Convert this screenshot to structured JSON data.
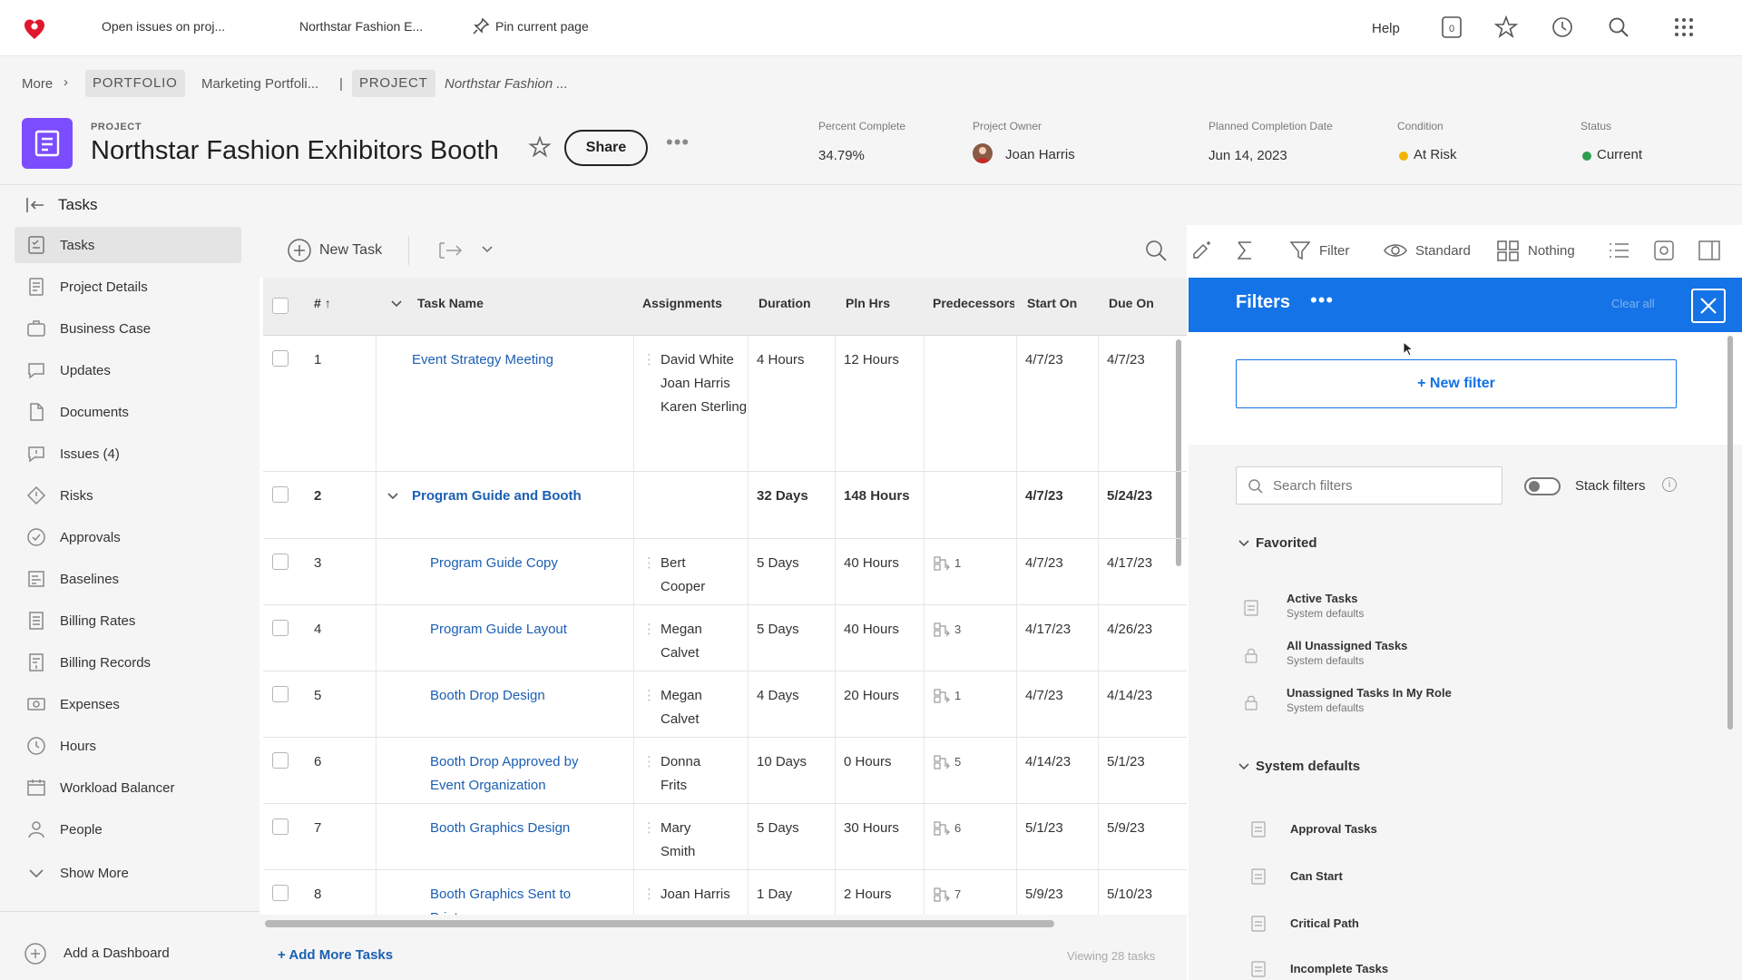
{
  "topbar": {
    "link1": "Open issues on proj...",
    "link2": "Northstar Fashion E...",
    "pin": "Pin current page",
    "help": "Help"
  },
  "breadcrumb": {
    "more": "More",
    "portfolio_tag": "PORTFOLIO",
    "portfolio_name": "Marketing Portfoli...",
    "sep": "|",
    "project_tag": "PROJECT",
    "project_name": "Northstar Fashion ..."
  },
  "project": {
    "type_label": "PROJECT",
    "title": "Northstar Fashion Exhibitors Booth",
    "share": "Share",
    "percent_label": "Percent Complete",
    "percent": "34.79%",
    "owner_label": "Project Owner",
    "owner": "Joan Harris",
    "planned_label": "Planned Completion Date",
    "planned": "Jun 14, 2023",
    "condition_label": "Condition",
    "condition": "At Risk",
    "status_label": "Status",
    "status": "Current",
    "colors": {
      "accent": "#1473e6",
      "logo": "#7c4dff",
      "at_risk": "#f2b300",
      "current": "#2d9d4f",
      "link": "#1b5fb3",
      "brand": "#e0182d"
    }
  },
  "tasks_title": "Tasks",
  "sidebar": {
    "items": [
      {
        "label": "Tasks",
        "icon": "tasks-icon"
      },
      {
        "label": "Project Details",
        "icon": "details-icon"
      },
      {
        "label": "Business Case",
        "icon": "business-case-icon"
      },
      {
        "label": "Updates",
        "icon": "updates-icon"
      },
      {
        "label": "Documents",
        "icon": "documents-icon"
      },
      {
        "label": "Issues (4)",
        "icon": "issues-icon"
      },
      {
        "label": "Risks",
        "icon": "risks-icon"
      },
      {
        "label": "Approvals",
        "icon": "approvals-icon"
      },
      {
        "label": "Baselines",
        "icon": "baselines-icon"
      },
      {
        "label": "Billing Rates",
        "icon": "billing-rates-icon"
      },
      {
        "label": "Billing Records",
        "icon": "billing-records-icon"
      },
      {
        "label": "Expenses",
        "icon": "expenses-icon"
      },
      {
        "label": "Hours",
        "icon": "hours-icon"
      },
      {
        "label": "Workload Balancer",
        "icon": "workload-icon"
      },
      {
        "label": "People",
        "icon": "people-icon"
      }
    ],
    "show_more": "Show More",
    "add_dashboard": "Add a Dashboard"
  },
  "toolbar": {
    "new_task": "New Task",
    "filter": "Filter",
    "view": "Standard",
    "grouping": "Nothing"
  },
  "table": {
    "headers": {
      "num": "#",
      "name": "Task Name",
      "assignments": "Assignments",
      "duration": "Duration",
      "plnhrs": "Pln Hrs",
      "predecessors": "Predecessors",
      "starton": "Start On",
      "dueon": "Due On"
    },
    "rows": [
      {
        "num": "1",
        "name": "Event Strategy Meeting",
        "assign": [
          "David White",
          "Joan Harris",
          "Karen Sterling"
        ],
        "duration": "4 Hours",
        "plnhrs": "12 Hours",
        "pred": "",
        "start": "4/7/23",
        "due": "4/7/23"
      },
      {
        "num": "2",
        "name": "Program Guide and Booth",
        "assign": [],
        "duration": "32 Days",
        "plnhrs": "148 Hours",
        "pred": "",
        "start": "4/7/23",
        "due": "5/24/23"
      },
      {
        "num": "3",
        "name": "Program Guide Copy",
        "assign": [
          "Bert Cooper"
        ],
        "duration": "5 Days",
        "plnhrs": "40 Hours",
        "pred": "1",
        "start": "4/7/23",
        "due": "4/17/23"
      },
      {
        "num": "4",
        "name": "Program Guide Layout",
        "assign": [
          "Megan Calvet"
        ],
        "duration": "5 Days",
        "plnhrs": "40 Hours",
        "pred": "3",
        "start": "4/17/23",
        "due": "4/26/23"
      },
      {
        "num": "5",
        "name": "Booth Drop Design",
        "assign": [
          "Megan Calvet"
        ],
        "duration": "4 Days",
        "plnhrs": "20 Hours",
        "pred": "1",
        "start": "4/7/23",
        "due": "4/14/23"
      },
      {
        "num": "6",
        "name": "Booth Drop Approved by Event Organization",
        "assign": [
          "Donna Frits"
        ],
        "duration": "10 Days",
        "plnhrs": "0 Hours",
        "pred": "5",
        "start": "4/14/23",
        "due": "5/1/23"
      },
      {
        "num": "7",
        "name": "Booth Graphics Design",
        "assign": [
          "Mary Smith"
        ],
        "duration": "5 Days",
        "plnhrs": "30 Hours",
        "pred": "6",
        "start": "5/1/23",
        "due": "5/9/23"
      },
      {
        "num": "8",
        "name": "Booth Graphics Sent to Printer",
        "assign": [
          "Joan Harris"
        ],
        "duration": "1 Day",
        "plnhrs": "2 Hours",
        "pred": "7",
        "start": "5/9/23",
        "due": "5/10/23"
      }
    ],
    "add_more": "+ Add More Tasks",
    "viewing": "Viewing 28 tasks"
  },
  "filters": {
    "title": "Filters",
    "clear_all": "Clear all",
    "new_filter": "+ New filter",
    "search_placeholder": "Search filters",
    "stack_filters": "Stack filters",
    "favorited_header": "Favorited",
    "favorited": [
      {
        "name": "Active Tasks",
        "sub": "System defaults"
      },
      {
        "name": "All Unassigned Tasks",
        "sub": "System defaults"
      },
      {
        "name": "Unassigned Tasks In My Role",
        "sub": "System defaults"
      }
    ],
    "system_header": "System defaults",
    "system": [
      "Approval Tasks",
      "Can Start",
      "Critical Path",
      "Incomplete Tasks"
    ]
  }
}
